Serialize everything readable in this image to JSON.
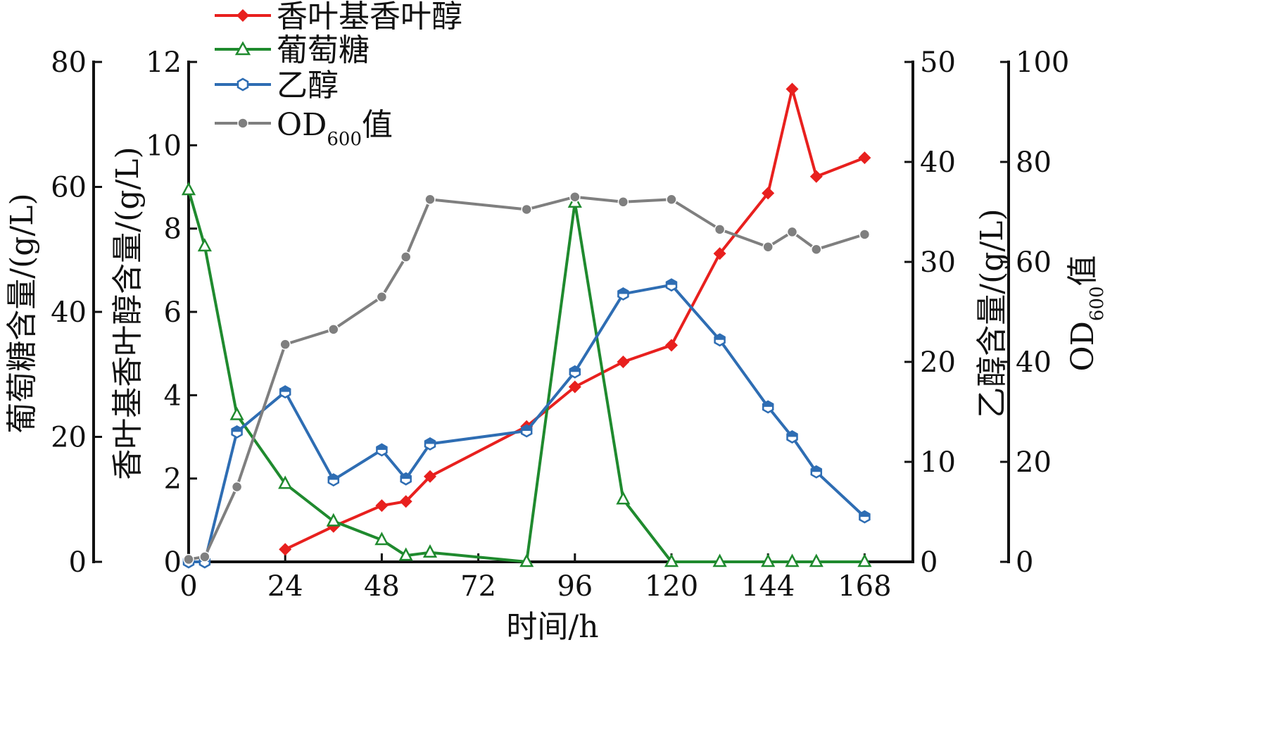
{
  "chart_data": {
    "type": "line",
    "xlabel": "时间/h",
    "x_ticks": [
      0,
      24,
      48,
      72,
      96,
      120,
      144,
      168
    ],
    "xlim": [
      0,
      180
    ],
    "axes": {
      "glucose": {
        "label": "葡萄糖含量/(g/L)",
        "ylim": [
          0,
          80
        ],
        "ticks": [
          0,
          20,
          40,
          60,
          80
        ]
      },
      "geraniol": {
        "label": "香叶基香叶醇含量/(g/L)",
        "ylim": [
          0,
          12
        ],
        "ticks": [
          0,
          2,
          4,
          6,
          8,
          10,
          12
        ]
      },
      "ethanol": {
        "label": "乙醇含量/(g/L)",
        "ylim": [
          0,
          50
        ],
        "ticks": [
          0,
          10,
          20,
          30,
          40,
          50
        ]
      },
      "od": {
        "label_main": "OD",
        "label_sub": "600",
        "label_suffix": "值",
        "ylim": [
          0,
          100
        ],
        "ticks": [
          0,
          20,
          40,
          60,
          80,
          100
        ]
      }
    },
    "series": [
      {
        "name": "香叶基香叶醇",
        "axis": "geraniol",
        "color": "#e8201e",
        "marker": "diamond",
        "x": [
          24,
          36,
          48,
          54,
          60,
          84,
          96,
          108,
          120,
          132,
          144,
          150,
          156,
          168
        ],
        "y": [
          0.3,
          0.85,
          1.35,
          1.45,
          2.05,
          3.25,
          4.2,
          4.8,
          5.2,
          7.4,
          8.85,
          11.35,
          9.25,
          9.7
        ]
      },
      {
        "name": "葡萄糖",
        "axis": "glucose",
        "color": "#1f8a2e",
        "marker": "triangle",
        "x": [
          0,
          4,
          12,
          24,
          36,
          48,
          54,
          60,
          84,
          96,
          108,
          120,
          132,
          144,
          150,
          156,
          168
        ],
        "y": [
          59.5,
          50.5,
          23.5,
          12.5,
          6.5,
          3.5,
          1.0,
          1.5,
          0,
          57.5,
          10.0,
          0,
          0,
          0,
          0,
          0,
          0
        ]
      },
      {
        "name": "乙醇",
        "axis": "ethanol",
        "color": "#2e6db3",
        "marker": "hexagon",
        "x": [
          0,
          4,
          12,
          24,
          36,
          48,
          54,
          60,
          84,
          96,
          108,
          120,
          132,
          144,
          150,
          156,
          168
        ],
        "y": [
          0,
          0,
          13,
          17,
          8.2,
          11.2,
          8.3,
          11.8,
          13.1,
          19,
          26.8,
          27.7,
          22.2,
          15.5,
          12.5,
          9.0,
          4.5
        ]
      },
      {
        "name": "OD",
        "name_sub": "600",
        "name_suffix": "值",
        "axis": "od",
        "color": "#7f7f7f",
        "marker": "circle",
        "x": [
          0,
          4,
          12,
          24,
          36,
          48,
          54,
          60,
          84,
          96,
          108,
          120,
          132,
          144,
          150,
          156,
          168
        ],
        "y": [
          0.5,
          1.0,
          15,
          43.5,
          46.5,
          53,
          61,
          72.5,
          70.5,
          73,
          72,
          72.5,
          66.5,
          63,
          66,
          62.5,
          65.5
        ]
      }
    ]
  }
}
